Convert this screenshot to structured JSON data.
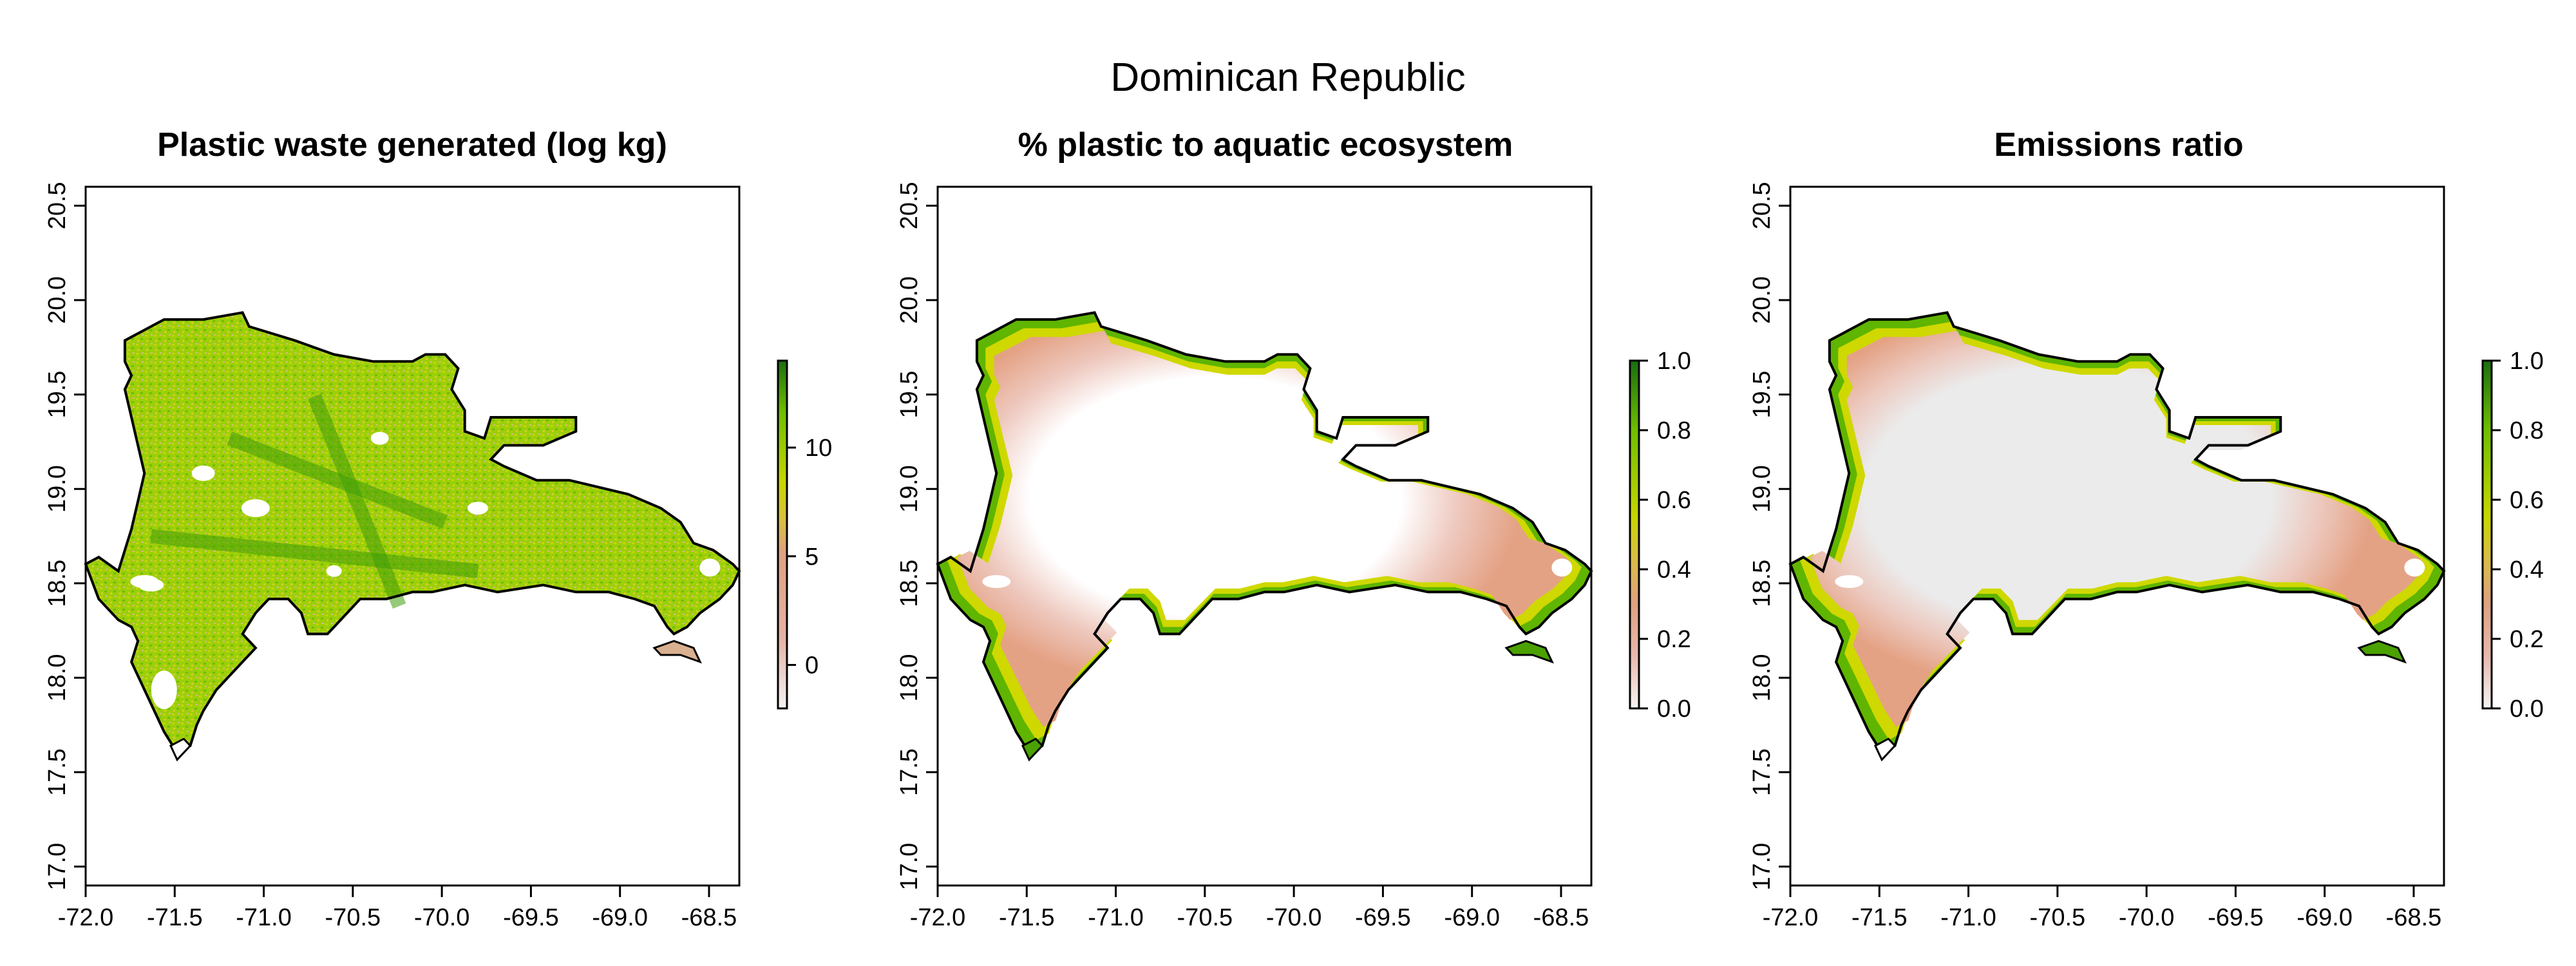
{
  "figure": {
    "title": "Dominican Republic"
  },
  "colors": {
    "ramp": [
      "#f2f2f2",
      "#e8c1b8",
      "#e0a58c",
      "#dcc24a",
      "#c8d400",
      "#7ec600",
      "#1f7a14"
    ],
    "land_high": "#8cd000",
    "land_mid": "#c7d800",
    "grey_interior": "#ebebeb",
    "pink": "#e6a890",
    "outline": "#000000"
  },
  "panels": [
    {
      "title": "Plastic waste generated (log kg)",
      "x_ticks": [
        "-72.0",
        "-71.5",
        "-71.0",
        "-70.5",
        "-70.0",
        "-69.5",
        "-69.0",
        "-68.5"
      ],
      "y_ticks": [
        "17.0",
        "17.5",
        "18.0",
        "18.5",
        "19.0",
        "19.5",
        "20.0",
        "20.5"
      ],
      "legend_ticks": [
        "0",
        "5",
        "10"
      ],
      "legend_range": [
        -2,
        14
      ]
    },
    {
      "title": "% plastic to aquatic ecosystem",
      "x_ticks": [
        "-72.0",
        "-71.5",
        "-71.0",
        "-70.5",
        "-70.0",
        "-69.5",
        "-69.0",
        "-68.5"
      ],
      "y_ticks": [
        "17.0",
        "17.5",
        "18.0",
        "18.5",
        "19.0",
        "19.5",
        "20.0",
        "20.5"
      ],
      "legend_ticks": [
        "0.0",
        "0.2",
        "0.4",
        "0.6",
        "0.8",
        "1.0"
      ],
      "legend_range": [
        0,
        1
      ]
    },
    {
      "title": "Emissions ratio",
      "x_ticks": [
        "-72.0",
        "-71.5",
        "-71.0",
        "-70.5",
        "-70.0",
        "-69.5",
        "-69.0",
        "-68.5"
      ],
      "y_ticks": [
        "17.0",
        "17.5",
        "18.0",
        "18.5",
        "19.0",
        "19.5",
        "20.0",
        "20.5"
      ],
      "legend_ticks": [
        "0.0",
        "0.2",
        "0.4",
        "0.6",
        "0.8",
        "1.0"
      ],
      "legend_range": [
        0,
        1
      ]
    }
  ],
  "map": {
    "x_range": [
      -72.0,
      -68.33
    ],
    "y_range": [
      16.9,
      20.6
    ]
  }
}
